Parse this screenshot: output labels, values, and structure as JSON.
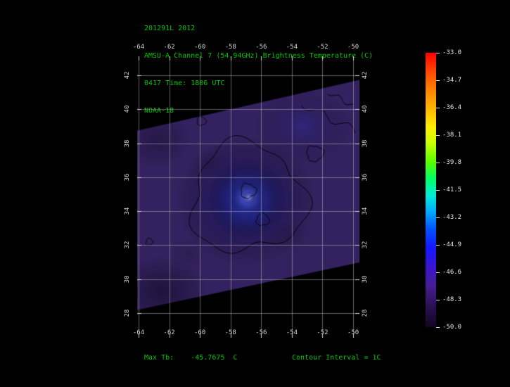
{
  "header": {
    "line1": "201291L 2012",
    "line2": "AMSU-A Channel 7 (54.94GHz) Brightness Temperature (C)",
    "line3": "0417 Time: 1806 UTC",
    "line4": "NOAA-18"
  },
  "footer": {
    "max_tb": "Max Tb:    -45.7675  C",
    "contour_interval": "Contour Interval = 1C"
  },
  "colors": {
    "text_green": "#00c400",
    "axis_text": "#d4d4d4",
    "grid": "rgba(190,190,190,0.5)",
    "tick": "#d0d0d0",
    "swath_base": "#34215f",
    "contour": "rgba(0,0,0,0.9)"
  },
  "chart_data": {
    "type": "heatmap",
    "title": "AMSU-A Channel 7 (54.94GHz) Brightness Temperature (C)",
    "scene_id": "201291L 2012",
    "time_utc": "0417 Time: 1806 UTC",
    "satellite": "NOAA-18",
    "units": "C",
    "max_tb_c": -45.7675,
    "contour_interval_c": 1,
    "x_axis": {
      "kind": "longitude_deg",
      "ticks": [
        "-64",
        "-62",
        "-60",
        "-58",
        "-56",
        "-54",
        "-52",
        "-50"
      ]
    },
    "y_axis": {
      "kind": "latitude_deg",
      "ticks_top_to_bottom": [
        "42",
        "40",
        "38",
        "36",
        "34",
        "32",
        "30",
        "28"
      ]
    },
    "colorbar": {
      "unit": "C",
      "min": -50.0,
      "max": -33.0,
      "labels_top_to_bottom": [
        "-33.0",
        "-34.7",
        "-36.4",
        "-38.1",
        "-39.8",
        "-41.5",
        "-43.2",
        "-44.9",
        "-46.6",
        "-48.3",
        "-50.0"
      ],
      "gradient_stops": [
        {
          "at": 0.0,
          "color": "#ff0000"
        },
        {
          "at": 0.06,
          "color": "#ff4000"
        },
        {
          "at": 0.13,
          "color": "#ff7e00"
        },
        {
          "at": 0.2,
          "color": "#ffb300"
        },
        {
          "at": 0.27,
          "color": "#ffee00"
        },
        {
          "at": 0.33,
          "color": "#c8ff00"
        },
        {
          "at": 0.4,
          "color": "#55ff00"
        },
        {
          "at": 0.46,
          "color": "#00ff66"
        },
        {
          "at": 0.52,
          "color": "#00ecd8"
        },
        {
          "at": 0.58,
          "color": "#00aaff"
        },
        {
          "at": 0.64,
          "color": "#0055ff"
        },
        {
          "at": 0.71,
          "color": "#1418ff"
        },
        {
          "at": 0.78,
          "color": "#3b14cf"
        },
        {
          "at": 0.85,
          "color": "#461d92"
        },
        {
          "at": 0.92,
          "color": "#2c1158"
        },
        {
          "at": 1.0,
          "color": "#12051f"
        }
      ]
    },
    "swath_polygon_lonlat": [
      [
        -64.3,
        38.7
      ],
      [
        -49.5,
        41.75
      ],
      [
        -49.5,
        31.0
      ],
      [
        -64.3,
        28.15
      ]
    ],
    "background_tb_c": -48.3,
    "warm_core": {
      "lon": -56.9,
      "lat": 34.75,
      "approx_tb_c": -45.8
    },
    "blobs": [
      {
        "lon": -57.0,
        "lat": 34.6,
        "rx_deg": 4.5,
        "ry_deg": 3.8,
        "color": "rgba(28,36,200,0.75)"
      },
      {
        "lon": -56.9,
        "lat": 34.7,
        "rx_deg": 2.6,
        "ry_deg": 2.4,
        "color": "rgba(58,74,235,0.85)"
      },
      {
        "lon": -56.9,
        "lat": 34.8,
        "rx_deg": 1.2,
        "ry_deg": 1.1,
        "color": "rgba(100,115,255,0.9)"
      },
      {
        "lon": -56.8,
        "lat": 34.8,
        "rx_deg": 0.45,
        "ry_deg": 0.4,
        "color": "rgba(140,150,255,0.95)"
      },
      {
        "lon": -53.3,
        "lat": 39.0,
        "rx_deg": 3.2,
        "ry_deg": 2.2,
        "color": "rgba(40,48,190,0.3)"
      },
      {
        "lon": -62.5,
        "lat": 29.3,
        "rx_deg": 3.0,
        "ry_deg": 2.0,
        "color": "rgba(5,3,18,0.45)"
      },
      {
        "lon": -62.8,
        "lat": 38.2,
        "rx_deg": 2.2,
        "ry_deg": 1.6,
        "color": "rgba(5,3,18,0.3)"
      },
      {
        "lon": -59.5,
        "lat": 36.8,
        "rx_deg": 1.2,
        "ry_deg": 0.9,
        "color": "rgba(0,0,0,0.14)"
      },
      {
        "lon": -54.2,
        "lat": 32.5,
        "rx_deg": 1.5,
        "ry_deg": 1.0,
        "color": "rgba(0,0,0,0.12)"
      },
      {
        "lon": -60.8,
        "lat": 31.5,
        "rx_deg": 1.3,
        "ry_deg": 0.9,
        "color": "rgba(0,0,0,0.12)"
      }
    ],
    "contours_closed": [
      {
        "lon": -56.9,
        "lat": 34.75,
        "rx_deg": 3.7,
        "ry_deg": 3.2,
        "p": 0.7
      },
      {
        "lon": -56.85,
        "lat": 35.2,
        "rx_deg": 0.5,
        "ry_deg": 0.42,
        "p": 1.6
      },
      {
        "lon": -55.9,
        "lat": 33.5,
        "rx_deg": 0.42,
        "ry_deg": 0.36,
        "p": 0.3
      },
      {
        "lon": -52.5,
        "lat": 37.4,
        "rx_deg": 0.55,
        "ry_deg": 0.45,
        "p": 2.2
      },
      {
        "lon": -63.3,
        "lat": 32.2,
        "rx_deg": 0.22,
        "ry_deg": 0.2,
        "p": 0.9
      },
      {
        "lon": -59.9,
        "lat": 39.3,
        "rx_deg": 0.3,
        "ry_deg": 0.25,
        "p": 1.2
      }
    ],
    "contours_open": [
      {
        "from": [
          -53.3,
          40.3
        ],
        "to": [
          -49.8,
          38.7
        ],
        "amp": 0.25,
        "waves": 4,
        "p": 0.5
      },
      {
        "from": [
          -51.6,
          41.0
        ],
        "to": [
          -50.0,
          40.2
        ],
        "amp": 0.15,
        "waves": 3,
        "p": 1.0
      }
    ]
  }
}
